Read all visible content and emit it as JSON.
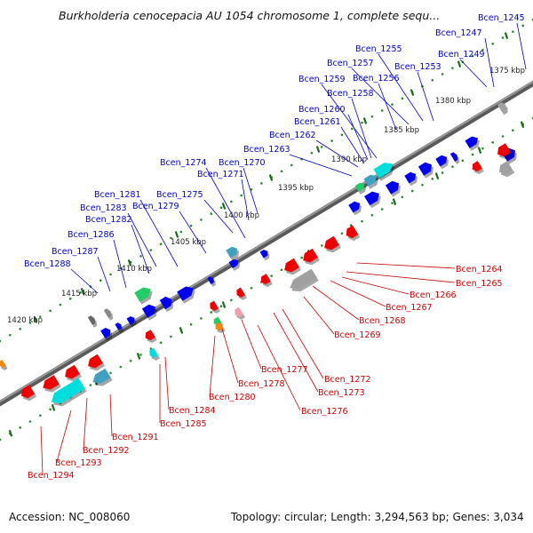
{
  "title": "Burkholderia cenocepacia AU 1054 chromosome 1, complete sequ...",
  "footer": {
    "accession": "Accession: NC_008060",
    "topology": "Topology: circular; Length: 3,294,563 bp; Genes: 3,034"
  },
  "colors": {
    "backbone": "#7a7a7a",
    "dots": "#2a8a2a",
    "ticks": "#1a6a1a",
    "plus_label": "#0000cc",
    "minus_label": "#cc0000",
    "plus_gene": "#0000ee",
    "minus_gene": "#ee0000",
    "cyan": "#00dddd",
    "teal": "#40a0c0",
    "green": "#22cc66",
    "gray": "#a0a0a0",
    "pink": "#f0a0a8",
    "orange": "#f08800"
  },
  "scale_labels": [
    "1375 kbp",
    "1380 kbp",
    "1385 kbp",
    "1390 kbp",
    "1395 kbp",
    "1400 kbp",
    "1405 kbp",
    "1410 kbp",
    "1415 kbp",
    "1420 kbp"
  ],
  "plus_genes": [
    "Bcen_1245",
    "Bcen_1247",
    "Bcen_1249",
    "Bcen_1253",
    "Bcen_1255",
    "Bcen_1257",
    "Bcen_1256",
    "Bcen_1259",
    "Bcen_1258",
    "Bcen_1260",
    "Bcen_1261",
    "Bcen_1262",
    "Bcen_1263",
    "Bcen_1274",
    "Bcen_1270",
    "Bcen_1271",
    "Bcen_1275",
    "Bcen_1281",
    "Bcen_1279",
    "Bcen_1283",
    "Bcen_1282",
    "Bcen_1286",
    "Bcen_1287",
    "Bcen_1288"
  ],
  "minus_genes": [
    "Bcen_1264",
    "Bcen_1265",
    "Bcen_1266",
    "Bcen_1267",
    "Bcen_1268",
    "Bcen_1269",
    "Bcen_1272",
    "Bcen_1277",
    "Bcen_1273",
    "Bcen_1278",
    "Bcen_1276",
    "Bcen_1280",
    "Bcen_1284",
    "Bcen_1285",
    "Bcen_1291",
    "Bcen_1292",
    "Bcen_1293",
    "Bcen_1294"
  ]
}
